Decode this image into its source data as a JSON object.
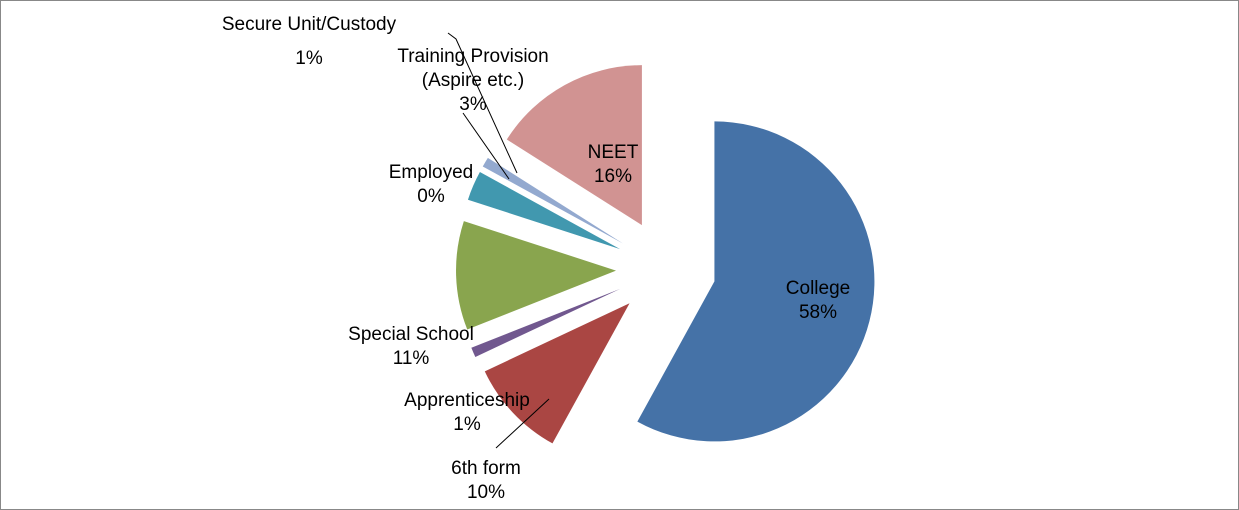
{
  "chart_data": {
    "type": "pie",
    "categories": [
      "College",
      "6th form",
      "Apprenticeship",
      "Special School",
      "Employed",
      "Training Provision (Aspire etc.)",
      "Secure Unit/Custody",
      "NEET"
    ],
    "values": [
      58,
      10,
      1,
      11,
      0,
      3,
      1,
      16
    ],
    "value_labels": [
      "58%",
      "10%",
      "1%",
      "11%",
      "0%",
      "3%",
      "1%",
      "16%"
    ],
    "colors": [
      "#4572A7",
      "#AA4643",
      "#71588F",
      "#89A54E",
      "#71588F",
      "#4198AF",
      "#93A9CF",
      "#D19392"
    ]
  }
}
